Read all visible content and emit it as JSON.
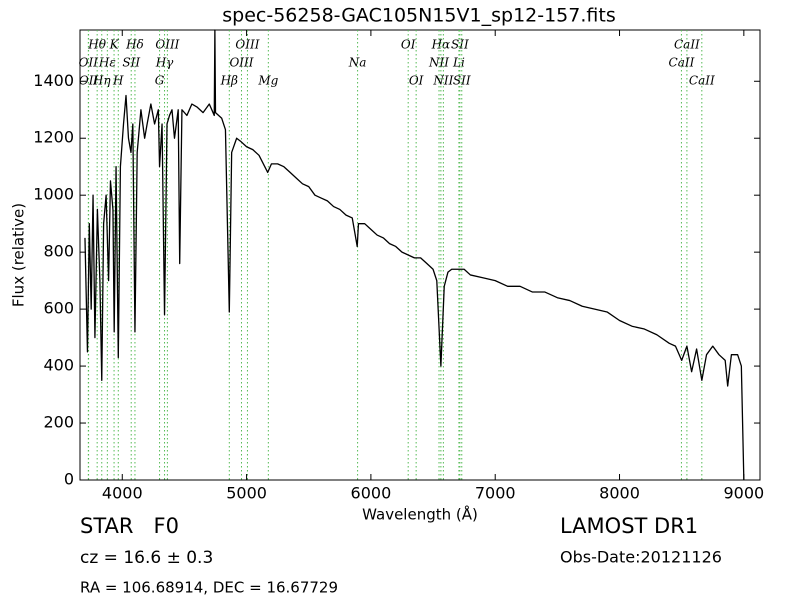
{
  "chart_data": {
    "type": "line",
    "title": "spec-56258-GAC105N15V1_sp12-157.fits",
    "x_label": "Wavelength (Å)",
    "y_label": "Flux (relative)",
    "xlim": [
      3660,
      9130
    ],
    "ylim": [
      0,
      1580
    ],
    "xticks": [
      4000,
      5000,
      6000,
      7000,
      8000,
      9000
    ],
    "yticks": [
      0,
      200,
      400,
      600,
      800,
      1000,
      1200,
      1400
    ],
    "color": "#000000",
    "line_color": "#55bb55",
    "x": [
      3700,
      3720,
      3735,
      3750,
      3765,
      3780,
      3800,
      3820,
      3835,
      3850,
      3870,
      3890,
      3905,
      3925,
      3935,
      3950,
      3968,
      3985,
      4010,
      4030,
      4050,
      4070,
      4085,
      4102,
      4120,
      4150,
      4180,
      4200,
      4230,
      4260,
      4290,
      4300,
      4320,
      4340,
      4360,
      4380,
      4400,
      4420,
      4450,
      4462,
      4480,
      4520,
      4560,
      4600,
      4650,
      4700,
      4740,
      4745,
      4750,
      4800,
      4830,
      4861,
      4880,
      4920,
      4950,
      5000,
      5050,
      5100,
      5170,
      5200,
      5250,
      5300,
      5350,
      5400,
      5450,
      5500,
      5550,
      5600,
      5650,
      5700,
      5750,
      5800,
      5850,
      5890,
      5900,
      5950,
      6000,
      6050,
      6100,
      6150,
      6200,
      6250,
      6300,
      6350,
      6400,
      6450,
      6500,
      6530,
      6563,
      6590,
      6620,
      6650,
      6700,
      6750,
      6800,
      6900,
      7000,
      7100,
      7200,
      7300,
      7400,
      7500,
      7600,
      7700,
      7800,
      7900,
      8000,
      8100,
      8200,
      8300,
      8400,
      8450,
      8500,
      8542,
      8580,
      8620,
      8662,
      8700,
      8750,
      8800,
      8850,
      8870,
      8900,
      8950,
      8980,
      9000
    ],
    "values": [
      850,
      450,
      900,
      600,
      1000,
      500,
      950,
      700,
      350,
      900,
      1000,
      700,
      1050,
      950,
      520,
      1100,
      430,
      1100,
      1250,
      1350,
      1200,
      1150,
      1250,
      520,
      1150,
      1300,
      1200,
      1250,
      1320,
      1250,
      1300,
      1100,
      1250,
      580,
      1250,
      1280,
      1300,
      1200,
      1300,
      760,
      1300,
      1280,
      1320,
      1310,
      1290,
      1320,
      1280,
      1580,
      1290,
      1270,
      1230,
      590,
      1150,
      1200,
      1190,
      1170,
      1160,
      1140,
      1080,
      1110,
      1110,
      1100,
      1080,
      1060,
      1040,
      1030,
      1000,
      990,
      980,
      960,
      950,
      930,
      920,
      820,
      900,
      900,
      880,
      860,
      850,
      830,
      820,
      800,
      790,
      780,
      780,
      760,
      740,
      700,
      400,
      680,
      730,
      740,
      740,
      740,
      720,
      710,
      700,
      680,
      680,
      660,
      660,
      640,
      630,
      610,
      600,
      590,
      560,
      540,
      530,
      510,
      480,
      470,
      420,
      470,
      380,
      460,
      350,
      440,
      470,
      440,
      420,
      330,
      440,
      440,
      400,
      0
    ],
    "line_labels": [
      [
        {
          "label": "Hθ",
          "x": 3798
        },
        {
          "label": "K",
          "x": 3934
        },
        {
          "label": "Hδ",
          "x": 4102
        },
        {
          "label": "OIII",
          "x": 4363
        },
        {
          "label": "OIII",
          "x": 5007
        },
        {
          "label": "OI",
          "x": 6300
        },
        {
          "label": "Hα",
          "x": 6563
        },
        {
          "label": "SII",
          "x": 6716
        },
        {
          "label": "CaII",
          "x": 8542
        }
      ],
      [
        {
          "label": "OII",
          "x": 3727
        },
        {
          "label": "Hε",
          "x": 3880
        },
        {
          "label": "SII",
          "x": 4072
        },
        {
          "label": "Hγ",
          "x": 4340
        },
        {
          "label": "OIII",
          "x": 4959
        },
        {
          "label": "Na",
          "x": 5893
        },
        {
          "label": "NII",
          "x": 6548
        },
        {
          "label": "Li",
          "x": 6708
        },
        {
          "label": "CaII",
          "x": 8498
        }
      ],
      [
        {
          "label": "OII",
          "x": 3729
        },
        {
          "label": "Hη",
          "x": 3835
        },
        {
          "label": "H",
          "x": 3968
        },
        {
          "label": "G",
          "x": 4300
        },
        {
          "label": "Hβ",
          "x": 4861
        },
        {
          "label": "Mg",
          "x": 5175
        },
        {
          "label": "OI",
          "x": 6364
        },
        {
          "label": "NII",
          "x": 6583
        },
        {
          "label": "SII",
          "x": 6731
        },
        {
          "label": "CaII",
          "x": 8662
        }
      ]
    ]
  },
  "footer": {
    "class": "STAR   F0",
    "cz": "cz = 16.6 ± 0.3",
    "coords": "RA = 106.68914, DEC = 16.67729",
    "survey": "LAMOST DR1",
    "obs_date": "Obs-Date:20121126"
  }
}
